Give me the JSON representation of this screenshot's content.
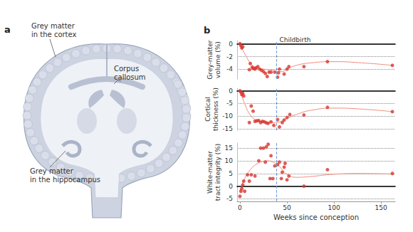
{
  "diagram": {
    "panel": "a",
    "labels": [
      {
        "lines": [
          "Grey matter",
          "in the cortex"
        ]
      },
      {
        "lines": [
          "Corpus",
          "callosum"
        ]
      },
      {
        "lines": [
          "Grey matter",
          "in the hippocampus"
        ]
      }
    ]
  },
  "chart_panel": "b",
  "chart_data": [
    {
      "type": "scatter",
      "ylabel": "Grey-matter\nvolume (%)",
      "xlim": [
        -3,
        165
      ],
      "ylim": [
        -5.6,
        0.6
      ],
      "yticks": [
        -4,
        -2,
        0
      ],
      "grid": true,
      "tick_labels": "y",
      "annotation": {
        "text": "Childbirth",
        "x": 39,
        "color": "#6f9fd8",
        "line_style": "dashed"
      },
      "series": [
        {
          "type": "scatter",
          "color": "#d7352d",
          "marker": "circle",
          "x": [
            0,
            1,
            2,
            3,
            10,
            11,
            13,
            14,
            16,
            17,
            19,
            21,
            23,
            25,
            27,
            29,
            31,
            33,
            37,
            40,
            41,
            42,
            47,
            50,
            52,
            68,
            93,
            162
          ],
          "values": [
            0.1,
            -0.2,
            -0.6,
            -0.4,
            -4.1,
            -3.1,
            -3.7,
            -3.9,
            -4.0,
            -3.8,
            -3.6,
            -4.0,
            -4.2,
            -4.4,
            -4.7,
            -5.2,
            -4.5,
            -4.5,
            -4.5,
            -5.3,
            -4.6,
            -4.0,
            -4.8,
            -4.0,
            -3.6,
            -3.6,
            -2.8,
            -3.4
          ]
        },
        {
          "type": "line",
          "color": "#ef8c7c",
          "line_style": "solid",
          "x": [
            0,
            5,
            10,
            15,
            20,
            25,
            30,
            35,
            40,
            45,
            50,
            60,
            75,
            100,
            130,
            162
          ],
          "values": [
            0,
            -1.5,
            -2.8,
            -3.6,
            -3.9,
            -4.0,
            -4.1,
            -4.2,
            -4.4,
            -4.4,
            -4.0,
            -3.4,
            -3.0,
            -2.8,
            -3.0,
            -3.4
          ]
        }
      ]
    },
    {
      "type": "scatter",
      "ylabel": "Cortical\nthickness (%)",
      "xlim": [
        -3,
        165
      ],
      "ylim": [
        -15.5,
        1
      ],
      "yticks": [
        -15,
        -10,
        -5,
        0
      ],
      "grid": true,
      "tick_labels": "y",
      "series": [
        {
          "type": "scatter",
          "color": "#d7352d",
          "marker": "circle",
          "x": [
            0,
            1,
            2,
            3,
            4,
            10,
            12,
            14,
            16,
            18,
            20,
            22,
            24,
            26,
            28,
            30,
            33,
            36,
            40,
            42,
            45,
            47,
            50,
            53,
            68,
            93,
            162
          ],
          "values": [
            0,
            -0.5,
            -1.5,
            -1,
            -2,
            -12.5,
            -6,
            -8,
            -12,
            -11.8,
            -11.7,
            -12.5,
            -12.0,
            -12.2,
            -12.6,
            -12.8,
            -12.2,
            -13.6,
            -11.3,
            -14.2,
            -12.5,
            -11.5,
            -10.5,
            -9.3,
            -9.5,
            -6.5,
            -8.2
          ]
        },
        {
          "type": "line",
          "color": "#ef8c7c",
          "line_style": "solid",
          "x": [
            0,
            5,
            10,
            15,
            20,
            25,
            30,
            35,
            40,
            45,
            50,
            60,
            75,
            100,
            130,
            162
          ],
          "values": [
            0,
            -5,
            -9,
            -11,
            -11.8,
            -12.2,
            -12.4,
            -12.5,
            -12.4,
            -11.8,
            -10.8,
            -9.3,
            -7.7,
            -6.8,
            -7.2,
            -8.2
          ]
        }
      ]
    },
    {
      "type": "scatter",
      "ylabel": "White-matter\ntract integrity (%)",
      "xlabel": "Weeks since conception",
      "xlim": [
        -3,
        165
      ],
      "xticks": [
        0,
        50,
        100,
        150
      ],
      "ylim": [
        -6,
        17
      ],
      "yticks": [
        -5,
        0,
        5,
        10,
        15
      ],
      "grid": true,
      "tick_labels": true,
      "series": [
        {
          "type": "scatter",
          "color": "#d7352d",
          "marker": "circle",
          "x": [
            0,
            1,
            2,
            3,
            4,
            5,
            8,
            10,
            12,
            16,
            20,
            22,
            25,
            27,
            28,
            30,
            32,
            33,
            35,
            37,
            40,
            42,
            44,
            45,
            47,
            48,
            50,
            52,
            68,
            93,
            162
          ],
          "values": [
            -4,
            -2,
            -1,
            0.5,
            2,
            -2,
            4.5,
            2,
            4.5,
            4,
            10,
            15,
            15,
            9.5,
            15.5,
            16.5,
            3,
            12,
            3,
            8,
            8.5,
            9.5,
            3,
            5.5,
            7.5,
            9,
            2.5,
            4,
            0,
            6.5,
            5
          ]
        },
        {
          "type": "line",
          "color": "#ef8c7c",
          "line_style": "solid",
          "x": [
            0,
            5,
            10,
            15,
            20,
            25,
            30,
            35,
            40,
            45,
            50,
            60,
            75,
            100,
            130,
            162
          ],
          "values": [
            -2,
            3,
            6,
            8,
            9.2,
            9.8,
            10,
            9.5,
            8.5,
            6.5,
            4.7,
            3.5,
            3.8,
            4.7,
            5,
            4.8
          ]
        }
      ]
    }
  ]
}
